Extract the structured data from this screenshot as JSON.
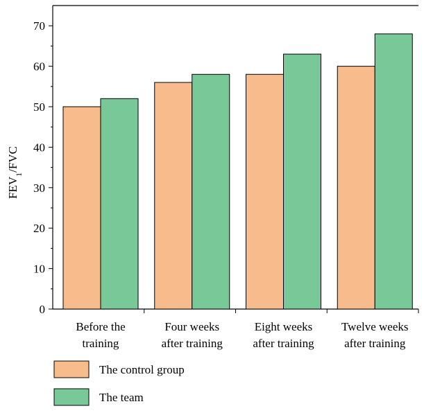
{
  "chart_data": {
    "type": "bar",
    "categories": [
      [
        "Before the",
        "training"
      ],
      [
        "Four weeks",
        "after training"
      ],
      [
        "Eight weeks",
        "after training"
      ],
      [
        "Twelve weeks",
        "after training"
      ]
    ],
    "series": [
      {
        "name": "The control group",
        "values": [
          50,
          56,
          58,
          60
        ],
        "color": "#f8bc8c"
      },
      {
        "name": "The team",
        "values": [
          52,
          58,
          63,
          68
        ],
        "color": "#78c898"
      }
    ],
    "ylabel": {
      "main": "FEV",
      "sub": "1",
      "rest": "/FVC"
    },
    "ylim": [
      0,
      75
    ],
    "yticks": [
      0,
      10,
      20,
      30,
      40,
      50,
      60,
      70
    ],
    "legend_position": "bottom-left",
    "grid": false
  }
}
